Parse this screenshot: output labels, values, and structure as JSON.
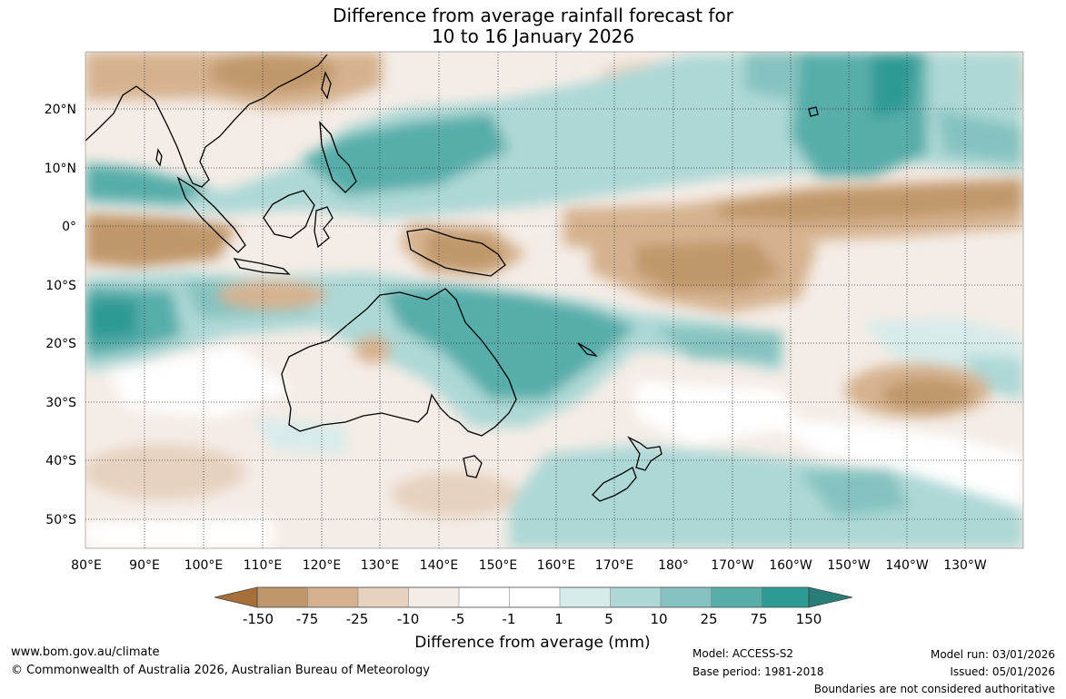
{
  "title": {
    "line1": "Difference from average rainfall forecast for",
    "line2": "10 to 16 January 2026"
  },
  "map": {
    "lat_labels": [
      "20°N",
      "10°N",
      "0°",
      "10°S",
      "20°S",
      "30°S",
      "40°S",
      "50°S"
    ],
    "lon_labels": [
      "80°E",
      "90°E",
      "100°E",
      "110°E",
      "120°E",
      "130°E",
      "140°E",
      "150°E",
      "160°E",
      "170°E",
      "180°",
      "170°W",
      "160°W",
      "150°W",
      "140°W",
      "130°W"
    ]
  },
  "colorbar": {
    "ticks": [
      "-150",
      "-75",
      "-25",
      "-10",
      "-5",
      "-1",
      "1",
      "5",
      "10",
      "25",
      "75",
      "150"
    ],
    "colors": [
      "#a87039",
      "#c0976a",
      "#d5b28f",
      "#e6d2bf",
      "#f4ece6",
      "#ffffff",
      "#d7ebea",
      "#add8d6",
      "#85c2bf",
      "#57adaa",
      "#2e9a94",
      "#287d78"
    ],
    "label": "Difference from average (mm)"
  },
  "footer": {
    "url": "www.bom.gov.au/climate",
    "copyright": "© Commonwealth of Australia 2026, Australian Bureau of Meteorology",
    "model": "Model: ACCESS-S2",
    "base_period": "Base period: 1981-2018",
    "model_run": "Model run: 03/01/2026",
    "issued": "Issued: 05/01/2026",
    "disclaimer": "Boundaries are not considered authoritative"
  }
}
